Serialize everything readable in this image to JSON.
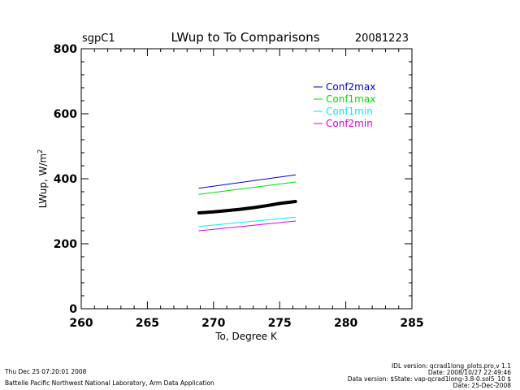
{
  "header": {
    "site": "sgpC1",
    "title": "LWup to To Comparisons",
    "date": "20081223"
  },
  "chart_data": {
    "type": "line",
    "title": "LWup to To Comparisons",
    "xlabel": "To, Degree K",
    "ylabel": "LWup, W/m",
    "ylabel_sup": "2",
    "xlim": [
      260,
      285
    ],
    "ylim": [
      0,
      800
    ],
    "x_ticks": [
      260,
      265,
      270,
      275,
      280,
      285
    ],
    "y_ticks": [
      0,
      200,
      400,
      600,
      800
    ],
    "grid": false,
    "legend_position": "top-right",
    "series": [
      {
        "name": "Conf2max",
        "color": "#0000cc",
        "x": [
          268.9,
          276.2
        ],
        "y": [
          371,
          412
        ]
      },
      {
        "name": "Conf1max",
        "color": "#00dd00",
        "x": [
          268.9,
          276.2
        ],
        "y": [
          352,
          390
        ]
      },
      {
        "name": "Conf1min",
        "color": "#00eeee",
        "x": [
          268.9,
          276.2
        ],
        "y": [
          253,
          282
        ]
      },
      {
        "name": "Conf2min",
        "color": "#dd00dd",
        "x": [
          268.9,
          276.2
        ],
        "y": [
          240,
          270
        ]
      },
      {
        "name": "",
        "color": "#000000",
        "x": [
          268.9,
          270,
          271,
          272,
          273,
          274,
          275,
          276.2
        ],
        "y": [
          295,
          298,
          302,
          306,
          311,
          317,
          324,
          330
        ]
      }
    ]
  },
  "footer": {
    "timestamp": "Thu Dec 25 07:20:01 2008",
    "org": "Battelle Pacific Northwest National Laboratory, Arm Data Application",
    "idl_version": "IDL version: qcrad1long_plots.pro,v 1.1",
    "idl_date": "Date: 2008/10/27 22:49:46",
    "data_version": "Data version: $State: vap-qcrad1long-3.8-0.sol5_10 $",
    "data_date": "Date: 25-Dec-2008"
  }
}
